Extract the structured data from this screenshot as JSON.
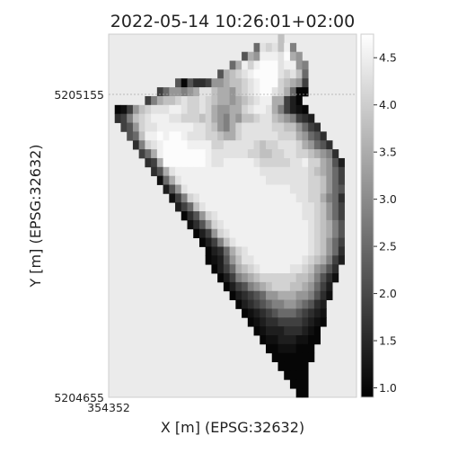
{
  "chart_data": {
    "type": "heatmap",
    "title": "2022-05-14 10:26:01+02:00",
    "xlabel": "X [m] (EPSG:32632)",
    "ylabel": "Y [m] (EPSG:32632)",
    "x_ticks": [
      "354352"
    ],
    "y_ticks": [
      "5205155",
      "5204655"
    ],
    "colorbar": {
      "ticks": [
        "1.0",
        "1.5",
        "2.0",
        "2.5",
        "3.0",
        "3.5",
        "4.0",
        "4.5"
      ],
      "range": [
        0.9,
        4.75
      ],
      "colormap": "gray"
    },
    "grid": false,
    "background_color": "#ebebeb",
    "values": [
      "..........................OOD............",
      "........................HBCBDAG..........",
      "......................IEFAAAB@EF.........",
      "....................HEACA@@@BAAFG........",
      "..................IEDCBA@@@@BCBDH........",
      "...........INIKKJFFEDDCBA@@@CDEFJ........",
      "........JHFFGFEBBDEEFDCBA@@BCEHNN........",
      "......JGEDDCBCCBCDEEFEDCBAAEEJLNO........",
      ".NMJFDCBBBAABCCBCEFFEECBAABEGJLMN........",
      ".KJGDCBAAABBCCCDCEFGEFDDCBBDEFGJKL.......",
      "..JIFCBBAAAAAABBCDFGECBBBBBCCDDFHJK......",
      "...IHDAA@A@@ABBBCCDEECBBBBBBCCCEFHIK.....",
      "....KGCBA@@@@AAAACCBBBBBCDCCBBBCEFHIK....",
      ".....JHEA@@@@@@@ABBBBBBCCDDCCBBCCDEFGK...",
      "......KJE@@@@@@@ABBAAAAABCCCCCBBACCEFIL..",
      ".......KIEBAAAAAAAAAAAAAABBBBBBBBCDEFHJ..",
      "........MHEBAAAAAAAAAAAAAABBBBBBBCCDFHJ..",
      ".........LIFBAAAAAAAAAAAAAAAAABBBCCDFHI..",
      "..........MJGCBAAAAAAAAAAAAAAAABBCCEGHK..",
      "...........LJHDBAAAAAAAAAAAAAAAABBCDFHJ..",
      "............NKIFCBAAAAAAAAAAAAAABBCDFHJ..",
      ".............MKIFCBAAAAAAAAAAAAAABCDEGI..",
      "..............NLJFCBAAAAAAAAAAAAABCDEGI..",
      "...............NLJGDBAAAAAAAAAAAABCDFHJ..",
      "................NLKHECBAAAAAAAAAABCDFHK..",
      "................NMLIFDBBAAAAAAAABCDEGJL..",
      ".................NLJHEDCBAAAAABBCDFGIK...",
      "..................NLJGFEDCCCCCCDDEGIKM...",
      "...................NLJIGFEDCCCDDEFHJL....",
      "....................NLKJIHFFEEEFFGIKM....",
      ".....................NLKJIHGGFFGHIKL.....",
      "......................NMLKJIHHHIJKLM.....",
      ".......................NMLKKJJJJKLMN.....",
      "........................NMLLLKKKLMN......",
      ".........................NMMLLLMMNN......",
      "..........................NNMMMNNN.......",
      "...........................NNNNNNN.......",
      "............................NNNNN........",
      ".............................NNNN........",
      "..............................NNN........",
      "...............................NN........"
    ]
  }
}
